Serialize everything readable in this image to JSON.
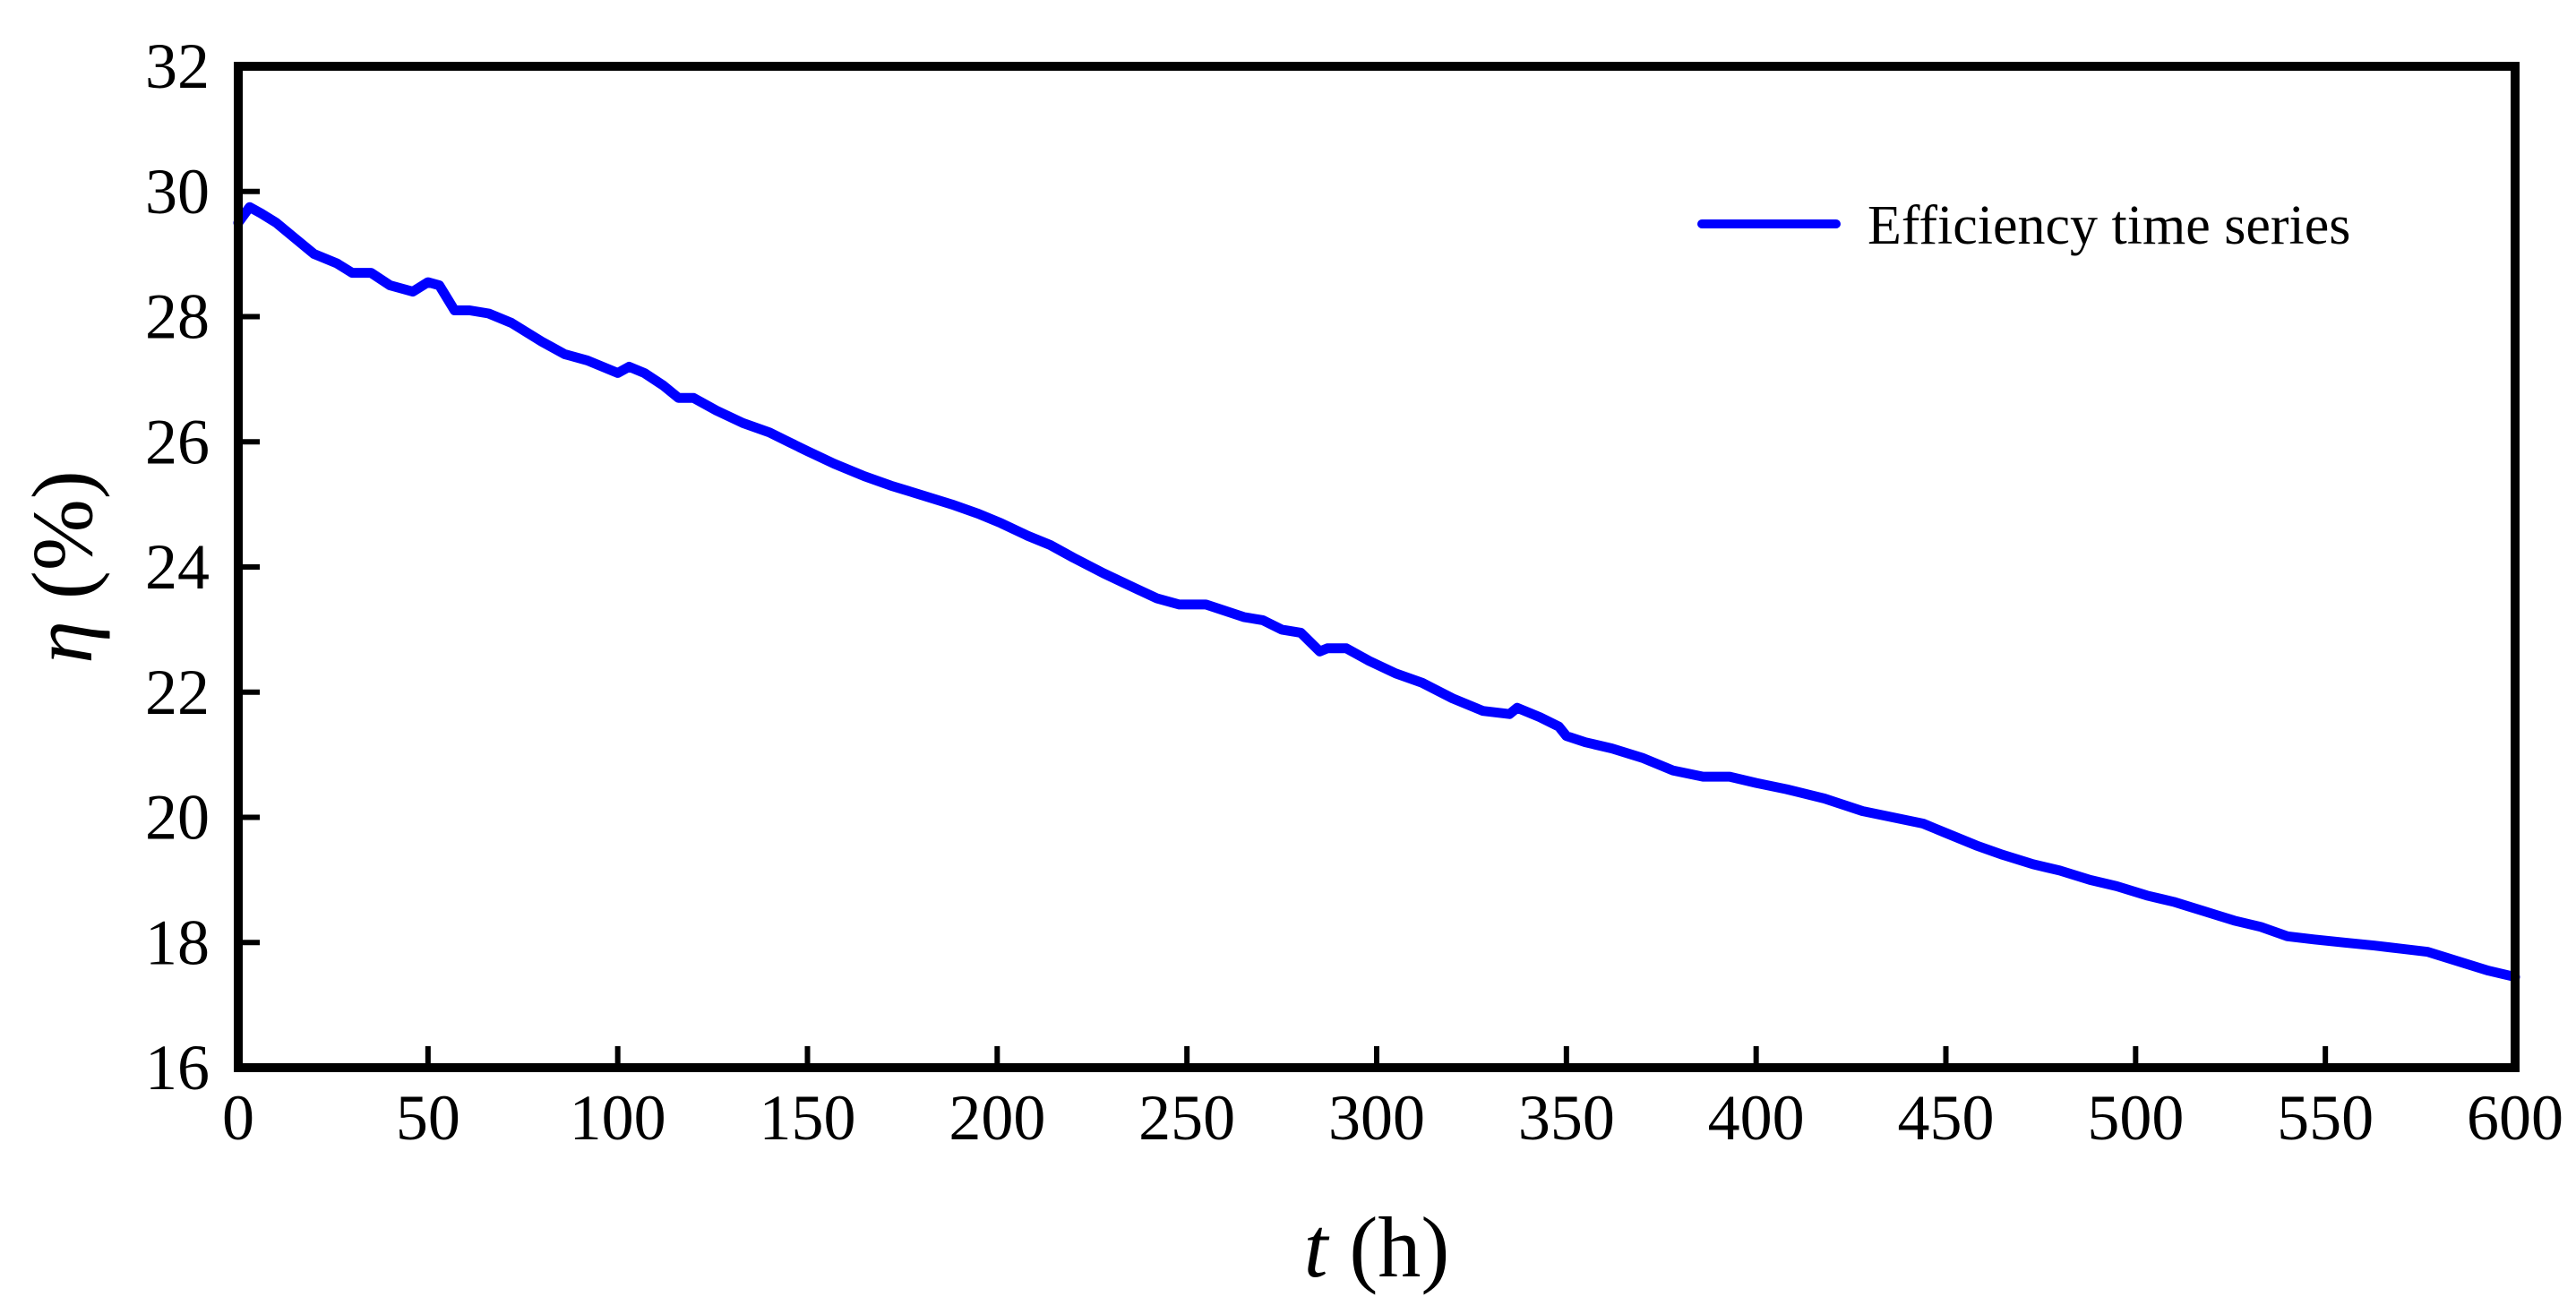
{
  "chart_data": {
    "type": "line",
    "title": "",
    "xlabel": {
      "symbol": "t",
      "unit": " (h)"
    },
    "ylabel": {
      "symbol": "η",
      "unit": " (%)"
    },
    "xlim": [
      0,
      600
    ],
    "ylim": [
      16,
      32
    ],
    "x_ticks": [
      "0",
      "50",
      "100",
      "150",
      "200",
      "250",
      "300",
      "350",
      "400",
      "450",
      "500",
      "550",
      "600"
    ],
    "y_ticks": [
      "16",
      "18",
      "20",
      "22",
      "24",
      "26",
      "28",
      "30",
      "32"
    ],
    "grid": false,
    "legend_position": "top-right",
    "series": [
      {
        "name": "Efficiency time series",
        "color": "#0000ff",
        "x": [
          0,
          3,
          6,
          10,
          14,
          20,
          26,
          30,
          35,
          40,
          46,
          50,
          53,
          57,
          61,
          66,
          72,
          80,
          86,
          92,
          100,
          103,
          107,
          112,
          116,
          120,
          126,
          133,
          140,
          145,
          150,
          157,
          165,
          172,
          180,
          188,
          195,
          201,
          208,
          214,
          220,
          228,
          235,
          242,
          248,
          255,
          260,
          265,
          270,
          275,
          280,
          285,
          287,
          292,
          298,
          305,
          312,
          320,
          328,
          335,
          337,
          343,
          348,
          350,
          355,
          362,
          370,
          378,
          386,
          393,
          400,
          408,
          418,
          428,
          436,
          444,
          450,
          458,
          465,
          473,
          480,
          488,
          495,
          503,
          510,
          518,
          526,
          533,
          540,
          547,
          555,
          563,
          570,
          577,
          585,
          593,
          600
        ],
        "y": [
          29.5,
          29.75,
          29.65,
          29.5,
          29.3,
          29.0,
          28.85,
          28.7,
          28.7,
          28.5,
          28.4,
          28.55,
          28.5,
          28.1,
          28.1,
          28.05,
          27.9,
          27.6,
          27.4,
          27.3,
          27.1,
          27.2,
          27.1,
          26.9,
          26.7,
          26.7,
          26.5,
          26.3,
          26.15,
          26.0,
          25.85,
          25.65,
          25.45,
          25.3,
          25.15,
          25.0,
          24.85,
          24.7,
          24.5,
          24.35,
          24.15,
          23.9,
          23.7,
          23.5,
          23.4,
          23.4,
          23.3,
          23.2,
          23.15,
          23.0,
          22.95,
          22.65,
          22.7,
          22.7,
          22.5,
          22.3,
          22.15,
          21.9,
          21.7,
          21.65,
          21.75,
          21.6,
          21.45,
          21.3,
          21.2,
          21.1,
          20.95,
          20.75,
          20.65,
          20.65,
          20.55,
          20.45,
          20.3,
          20.1,
          20.0,
          19.9,
          19.75,
          19.55,
          19.4,
          19.25,
          19.15,
          19.0,
          18.9,
          18.75,
          18.65,
          18.5,
          18.35,
          18.25,
          18.1,
          18.05,
          18.0,
          17.95,
          17.9,
          17.85,
          17.7,
          17.55,
          17.45
        ]
      }
    ]
  }
}
